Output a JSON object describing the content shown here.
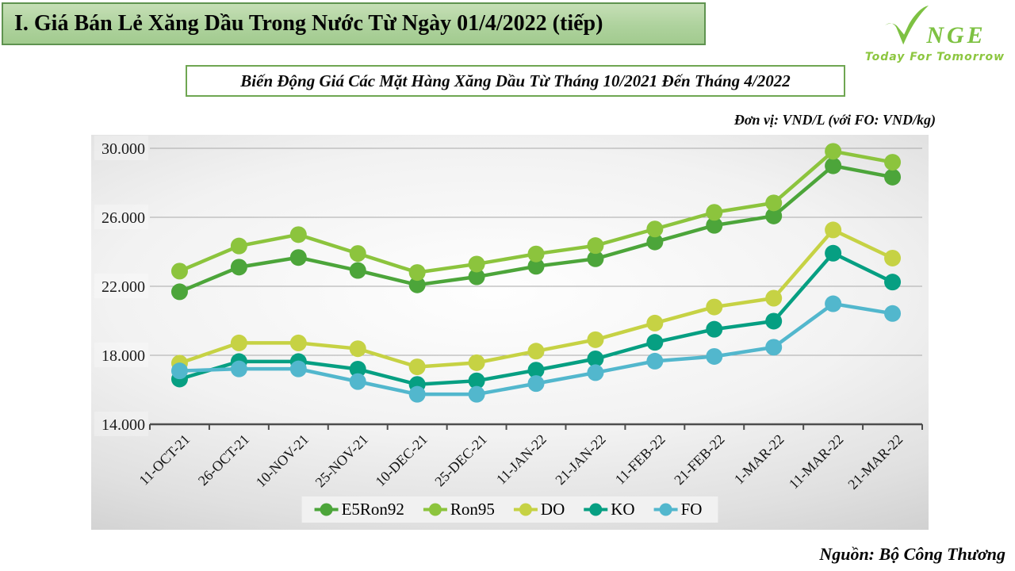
{
  "header": {
    "title": "I. Giá Bán Lẻ Xăng Dầu Trong Nước Từ Ngày 01/4/2022 (tiếp)"
  },
  "logo": {
    "brand_rest": "NGE",
    "tagline": "Today For Tomorrow",
    "color": "#7dc142"
  },
  "chart_data": {
    "type": "line",
    "title": "Biến Động Giá Các Mặt Hàng Xăng Dầu Từ Tháng 10/2021 Đến Tháng 4/2022",
    "unit_note": "Đơn vị: VND/L (với FO: VND/kg)",
    "categories": [
      "11-OCT-21",
      "26-OCT-21",
      "10-NOV-21",
      "25-NOV-21",
      "10-DEC-21",
      "25-DEC-21",
      "11-JAN-22",
      "21-JAN-22",
      "11-FEB-22",
      "21-FEB-22",
      "1-MAR-22",
      "11-MAR-22",
      "21-MAR-22"
    ],
    "series": [
      {
        "name": "E5Ron92",
        "color": "#4CA53A",
        "values": [
          21683,
          23110,
          23669,
          22917,
          22082,
          22550,
          23159,
          23595,
          24571,
          25532,
          26077,
          28985,
          28330
        ]
      },
      {
        "name": "Ron95",
        "color": "#8CC43D",
        "values": [
          22879,
          24338,
          24996,
          23902,
          22801,
          23290,
          23876,
          24360,
          25322,
          26287,
          26834,
          29824,
          29192
        ]
      },
      {
        "name": "DO",
        "color": "#C6D244",
        "values": [
          17545,
          18716,
          18716,
          18382,
          17330,
          17570,
          18239,
          18903,
          19865,
          20801,
          21310,
          25268,
          23633
        ]
      },
      {
        "name": "KO",
        "color": "#069F82",
        "values": [
          16622,
          17637,
          17637,
          17197,
          16310,
          16520,
          17138,
          17793,
          18751,
          19509,
          19979,
          23918,
          22245
        ]
      },
      {
        "name": "FO",
        "color": "#52B7CD",
        "values": [
          17097,
          17210,
          17210,
          16477,
          15740,
          15740,
          16362,
          16993,
          17659,
          17932,
          18468,
          20987,
          20423
        ]
      }
    ],
    "ylim": [
      14000,
      30000
    ],
    "yticks": [
      14000,
      18000,
      22000,
      26000,
      30000
    ],
    "ytick_labels": [
      "14.000",
      "18.000",
      "22.000",
      "26.000",
      "30.000"
    ],
    "grid": true,
    "legend_position": "bottom"
  },
  "footer": {
    "source": "Nguồn: Bộ Công Thương"
  }
}
